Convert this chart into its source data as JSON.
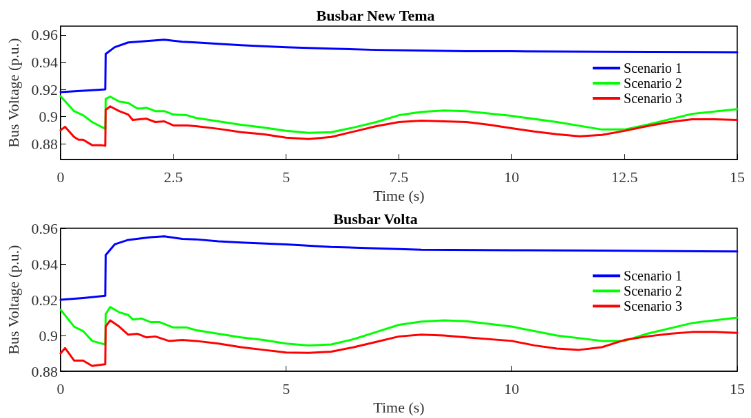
{
  "chart_data": [
    {
      "type": "line",
      "title": "Busbar New Tema",
      "xlabel": "Time (s)",
      "ylabel": "Bus Voltage (p.u.)",
      "xlim": [
        0,
        15
      ],
      "xticks": [
        0,
        2.5,
        5,
        7.5,
        10,
        12.5,
        15
      ],
      "ylim": [
        0.8684,
        0.9665
      ],
      "yticks": [
        0.88,
        0.9,
        0.92,
        0.94,
        0.96
      ],
      "grid": false,
      "legend": "top right",
      "line_style": "solid",
      "marker": "none",
      "series": [
        {
          "name": "Scenario 1",
          "color": "#0000ff",
          "x": [
            0,
            0.5,
            0.99,
            1,
            1.2,
            1.5,
            2,
            2.3,
            2.7,
            3,
            4,
            5,
            6,
            7,
            8,
            9,
            10,
            12,
            15
          ],
          "values": [
            0.918,
            0.919,
            0.92,
            0.946,
            0.951,
            0.9545,
            0.9557,
            0.9565,
            0.955,
            0.9545,
            0.9525,
            0.951,
            0.95,
            0.949,
            0.9485,
            0.948,
            0.948,
            0.9477,
            0.9473
          ]
        },
        {
          "name": "Scenario 2",
          "color": "#00ff00",
          "x": [
            0,
            0.3,
            0.5,
            0.7,
            0.99,
            1,
            1.1,
            1.3,
            1.5,
            1.7,
            1.8,
            1.9,
            2.1,
            2.3,
            2.5,
            2.8,
            3,
            3.5,
            4,
            4.5,
            5,
            5.5,
            6,
            6.5,
            7,
            7.5,
            8,
            8.5,
            9,
            10,
            11,
            12,
            12.5,
            13,
            14,
            15
          ],
          "values": [
            0.915,
            0.904,
            0.901,
            0.896,
            0.891,
            0.913,
            0.9147,
            0.911,
            0.91,
            0.906,
            0.906,
            0.9065,
            0.904,
            0.904,
            0.9015,
            0.901,
            0.899,
            0.8965,
            0.894,
            0.892,
            0.8895,
            0.888,
            0.8885,
            0.892,
            0.896,
            0.901,
            0.9035,
            0.9045,
            0.904,
            0.9005,
            0.896,
            0.8905,
            0.8905,
            0.894,
            0.902,
            0.9055
          ]
        },
        {
          "name": "Scenario 3",
          "color": "#ff0000",
          "x": [
            0,
            0.1,
            0.3,
            0.4,
            0.5,
            0.7,
            0.9,
            0.99,
            1,
            1.1,
            1.3,
            1.5,
            1.6,
            1.9,
            2.1,
            2.3,
            2.5,
            2.8,
            3,
            3.5,
            4,
            4.5,
            5,
            5.5,
            6,
            6.5,
            7,
            7.5,
            8,
            8.5,
            9,
            9.5,
            10,
            10.5,
            11,
            11.5,
            12,
            12.5,
            13,
            13.5,
            14,
            14.5,
            15
          ],
          "values": [
            0.89,
            0.8925,
            0.885,
            0.883,
            0.883,
            0.879,
            0.879,
            0.8785,
            0.905,
            0.9075,
            0.904,
            0.9015,
            0.8975,
            0.8985,
            0.896,
            0.8965,
            0.8935,
            0.8935,
            0.893,
            0.891,
            0.8885,
            0.887,
            0.8845,
            0.8835,
            0.885,
            0.889,
            0.893,
            0.896,
            0.897,
            0.8965,
            0.896,
            0.894,
            0.8915,
            0.889,
            0.887,
            0.8855,
            0.8865,
            0.8895,
            0.893,
            0.896,
            0.898,
            0.898,
            0.8975
          ]
        }
      ]
    },
    {
      "type": "line",
      "title": "Busbar Volta",
      "xlabel": "Time (s)",
      "ylabel": "Bus Voltage (p.u.)",
      "xlim": [
        0,
        15
      ],
      "xticks": [
        0,
        5,
        10,
        15
      ],
      "ylim": [
        0.88,
        0.96
      ],
      "yticks": [
        0.88,
        0.9,
        0.92,
        0.94,
        0.96
      ],
      "grid": false,
      "legend": "top right",
      "line_style": "solid",
      "marker": "none",
      "series": [
        {
          "name": "Scenario 1",
          "color": "#0000ff",
          "x": [
            0,
            0.5,
            0.99,
            1,
            1.2,
            1.5,
            2,
            2.3,
            2.7,
            3,
            3.5,
            4,
            5,
            6,
            7,
            8,
            10,
            12,
            15
          ],
          "values": [
            0.92,
            0.921,
            0.9222,
            0.945,
            0.951,
            0.9535,
            0.955,
            0.9555,
            0.954,
            0.9538,
            0.9527,
            0.952,
            0.951,
            0.9495,
            0.9488,
            0.948,
            0.9477,
            0.9475,
            0.947
          ]
        },
        {
          "name": "Scenario 2",
          "color": "#00ff00",
          "x": [
            0,
            0.3,
            0.5,
            0.7,
            0.99,
            1,
            1.1,
            1.3,
            1.5,
            1.6,
            1.8,
            2,
            2.2,
            2.5,
            2.8,
            3,
            3.5,
            4,
            4.5,
            5,
            5.5,
            6,
            6.5,
            7,
            7.5,
            8,
            8.5,
            9,
            10,
            11,
            12,
            12.5,
            13,
            14,
            15
          ],
          "values": [
            0.9145,
            0.905,
            0.9025,
            0.897,
            0.895,
            0.912,
            0.916,
            0.913,
            0.9115,
            0.909,
            0.9095,
            0.9075,
            0.9075,
            0.9045,
            0.9045,
            0.903,
            0.901,
            0.899,
            0.8975,
            0.8955,
            0.8945,
            0.895,
            0.898,
            0.902,
            0.906,
            0.9078,
            0.9085,
            0.908,
            0.905,
            0.9,
            0.897,
            0.897,
            0.901,
            0.907,
            0.91
          ]
        },
        {
          "name": "Scenario 3",
          "color": "#ff0000",
          "x": [
            0,
            0.1,
            0.3,
            0.5,
            0.7,
            0.99,
            1,
            1.1,
            1.3,
            1.5,
            1.7,
            1.9,
            2.1,
            2.4,
            2.7,
            3,
            3.5,
            4,
            4.5,
            5,
            5.5,
            6,
            6.5,
            7,
            7.5,
            8,
            8.5,
            9,
            10,
            10.5,
            11,
            11.5,
            12,
            12.5,
            13,
            13.5,
            14,
            14.5,
            15
          ],
          "values": [
            0.89,
            0.893,
            0.886,
            0.886,
            0.883,
            0.884,
            0.905,
            0.9085,
            0.905,
            0.9005,
            0.901,
            0.899,
            0.8995,
            0.897,
            0.8975,
            0.897,
            0.8955,
            0.8935,
            0.892,
            0.8905,
            0.8903,
            0.891,
            0.8935,
            0.8965,
            0.8995,
            0.9005,
            0.9,
            0.899,
            0.897,
            0.8945,
            0.8927,
            0.892,
            0.8935,
            0.8975,
            0.8995,
            0.901,
            0.902,
            0.902,
            0.9015
          ]
        }
      ]
    }
  ]
}
